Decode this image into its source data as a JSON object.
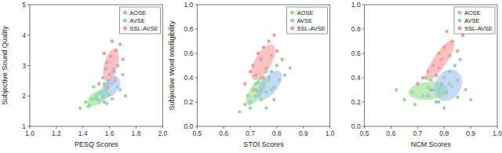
{
  "chart_data": [
    {
      "type": "scatter",
      "x_label": "PESQ Scores",
      "y_label": "Subjective Sound Quality",
      "legend": "topright",
      "xlim": [
        1.0,
        2.0
      ],
      "xticks": [
        {
          "value": 1.0,
          "label": "1.0"
        },
        1.2,
        1.4,
        1.6,
        1.8,
        {
          "value": 2.0,
          "label": "2.0"
        }
      ],
      "ylim": [
        1,
        5
      ],
      "yticks": [
        1,
        2,
        3,
        4,
        5
      ],
      "series": [
        {
          "name": "AOSE",
          "color": "#8fe08a",
          "x": [
            1.38,
            1.42,
            1.45,
            1.47,
            1.5,
            1.52,
            1.53,
            1.55,
            1.57,
            1.58,
            1.6,
            1.48,
            1.44,
            1.56,
            1.62
          ],
          "values": [
            1.6,
            1.8,
            1.7,
            1.9,
            2.0,
            1.85,
            2.1,
            1.95,
            2.2,
            1.75,
            2.05,
            2.3,
            1.65,
            2.4,
            1.9
          ]
        },
        {
          "name": "AVSE",
          "color": "#9fc3ec",
          "x": [
            1.5,
            1.52,
            1.55,
            1.57,
            1.58,
            1.6,
            1.62,
            1.64,
            1.66,
            1.68,
            1.7,
            1.56,
            1.63,
            1.59,
            1.72
          ],
          "values": [
            1.9,
            2.1,
            2.0,
            2.3,
            2.2,
            2.5,
            2.4,
            2.6,
            2.3,
            2.2,
            2.7,
            1.8,
            2.9,
            2.4,
            2.0
          ]
        },
        {
          "name": "SSL-AVSE",
          "color": "#f39a9a",
          "x": [
            1.52,
            1.55,
            1.57,
            1.58,
            1.6,
            1.61,
            1.63,
            1.65,
            1.66,
            1.68,
            1.7,
            1.62,
            1.64,
            1.59,
            1.56
          ],
          "values": [
            2.4,
            2.6,
            2.9,
            3.1,
            2.7,
            3.3,
            2.8,
            3.5,
            3.0,
            3.7,
            3.2,
            3.8,
            2.5,
            2.3,
            3.4
          ]
        }
      ]
    },
    {
      "type": "scatter",
      "x_label": "STOI Scores",
      "y_label": "Subjective Word Intelligibility",
      "legend": "topright",
      "xlim": [
        0.5,
        1.0
      ],
      "xticks": [
        0.5,
        0.6,
        0.7,
        0.8,
        0.9,
        {
          "value": 1.0,
          "label": "1.0"
        }
      ],
      "ylim": [
        0,
        1.0
      ],
      "yticks": [
        {
          "value": 0,
          "label": "0.0"
        },
        0.2,
        0.4,
        0.6,
        0.8,
        {
          "value": 1.0,
          "label": "1.0"
        }
      ],
      "series": [
        {
          "name": "AOSE",
          "color": "#8fe08a",
          "x": [
            0.66,
            0.68,
            0.69,
            0.7,
            0.71,
            0.72,
            0.73,
            0.74,
            0.75,
            0.76,
            0.77,
            0.7,
            0.72,
            0.74,
            0.78
          ],
          "values": [
            0.12,
            0.18,
            0.25,
            0.2,
            0.3,
            0.35,
            0.28,
            0.4,
            0.33,
            0.45,
            0.38,
            0.15,
            0.42,
            0.22,
            0.3
          ]
        },
        {
          "name": "AVSE",
          "color": "#9fc3ec",
          "x": [
            0.7,
            0.72,
            0.74,
            0.75,
            0.76,
            0.77,
            0.78,
            0.79,
            0.8,
            0.81,
            0.83,
            0.85,
            0.76,
            0.79,
            0.73
          ],
          "values": [
            0.2,
            0.25,
            0.3,
            0.35,
            0.28,
            0.4,
            0.45,
            0.32,
            0.5,
            0.38,
            0.42,
            0.48,
            0.15,
            0.22,
            0.36
          ]
        },
        {
          "name": "SSL-AVSE",
          "color": "#f39a9a",
          "x": [
            0.68,
            0.7,
            0.71,
            0.72,
            0.73,
            0.74,
            0.75,
            0.76,
            0.77,
            0.78,
            0.79,
            0.8,
            0.72,
            0.75,
            0.82
          ],
          "values": [
            0.35,
            0.45,
            0.5,
            0.42,
            0.6,
            0.55,
            0.65,
            0.48,
            0.7,
            0.58,
            0.75,
            0.62,
            0.3,
            0.4,
            0.55
          ]
        }
      ]
    },
    {
      "type": "scatter",
      "x_label": "NCM Scores",
      "legend": "topright",
      "xlim": [
        0.5,
        1.0
      ],
      "xticks": [
        0.5,
        0.6,
        0.7,
        0.8,
        0.9,
        {
          "value": 1.0,
          "label": "1.0"
        }
      ],
      "ylim": [
        0,
        1.0
      ],
      "yticks": [
        {
          "value": 0,
          "label": "0.0"
        },
        0.2,
        0.4,
        0.6,
        0.8,
        {
          "value": 1.0,
          "label": "1.0"
        }
      ],
      "series": [
        {
          "name": "AOSE",
          "color": "#8fe08a",
          "x": [
            0.62,
            0.65,
            0.68,
            0.7,
            0.72,
            0.74,
            0.75,
            0.77,
            0.78,
            0.8,
            0.82,
            0.85,
            0.73,
            0.69,
            0.79
          ],
          "values": [
            0.3,
            0.22,
            0.28,
            0.35,
            0.25,
            0.32,
            0.38,
            0.2,
            0.3,
            0.27,
            0.35,
            0.24,
            0.4,
            0.18,
            0.33
          ]
        },
        {
          "name": "AVSE",
          "color": "#9fc3ec",
          "x": [
            0.74,
            0.76,
            0.78,
            0.79,
            0.8,
            0.81,
            0.82,
            0.83,
            0.84,
            0.85,
            0.86,
            0.88,
            0.8,
            0.77,
            0.9
          ],
          "values": [
            0.25,
            0.3,
            0.2,
            0.35,
            0.4,
            0.28,
            0.45,
            0.33,
            0.5,
            0.38,
            0.55,
            0.3,
            0.15,
            0.42,
            0.22
          ]
        },
        {
          "name": "SSL-AVSE",
          "color": "#f39a9a",
          "x": [
            0.7,
            0.72,
            0.74,
            0.76,
            0.77,
            0.78,
            0.79,
            0.8,
            0.82,
            0.83,
            0.85,
            0.87,
            0.75,
            0.81,
            0.78
          ],
          "values": [
            0.35,
            0.4,
            0.45,
            0.5,
            0.42,
            0.6,
            0.55,
            0.65,
            0.58,
            0.7,
            0.62,
            0.75,
            0.3,
            0.78,
            0.48
          ]
        }
      ]
    }
  ]
}
